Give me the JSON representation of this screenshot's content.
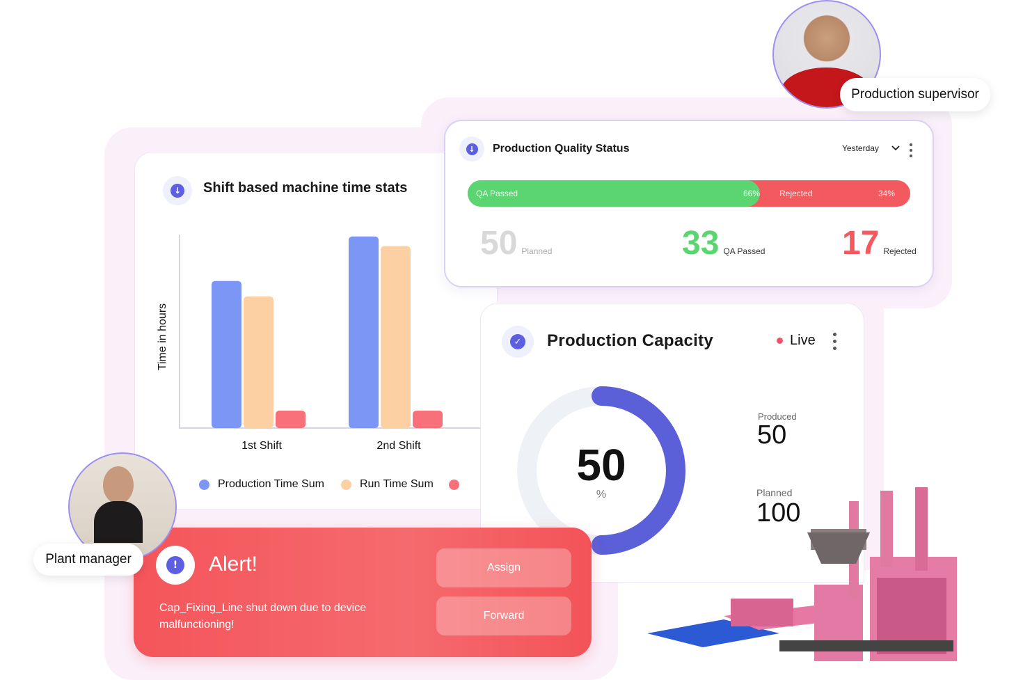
{
  "supervisor": {
    "label": "Production supervisor"
  },
  "manager": {
    "label": "Plant manager"
  },
  "shift_card": {
    "title": "Shift based machine time stats",
    "ylabel": "Time in hours",
    "legend": [
      "Production Time Sum",
      "Run Time Sum"
    ]
  },
  "chart_data": {
    "type": "bar",
    "categories": [
      "1st Shift",
      "2nd Shift"
    ],
    "ylabel": "Time in hours",
    "ylim": [
      0,
      10
    ],
    "series": [
      {
        "name": "Production Time Sum",
        "values": [
          7.6,
          9.9
        ],
        "color": "#7b96f5"
      },
      {
        "name": "Run Time Sum",
        "values": [
          6.8,
          9.4
        ],
        "color": "#fdd0a3"
      },
      {
        "values": [
          0.9,
          0.9
        ],
        "color": "#f7707a"
      }
    ]
  },
  "quality_card": {
    "title": "Production Quality Status",
    "period": "Yesterday",
    "bar": {
      "passed_label": "QA Passed",
      "passed_pct": "66%",
      "passed_fraction": 0.66,
      "rejected_label": "Rejected",
      "rejected_pct": "34%"
    },
    "planned_value": "50",
    "planned_label": "Planned",
    "passed_value": "33",
    "passed_label": "QA Passed",
    "rejected_value": "17",
    "rejected_label": "Rejected"
  },
  "capacity_card": {
    "title": "Production Capacity",
    "status": "Live",
    "gauge_value": "50",
    "gauge_unit": "%",
    "gauge_fraction": 0.5,
    "produced_label": "Produced",
    "produced_value": "50",
    "planned_label": "Planned",
    "planned_value": "100"
  },
  "alert": {
    "title": "Alert!",
    "message": "Cap_Fixing_Line shut down due to device malfunctioning!",
    "assign_label": "Assign",
    "forward_label": "Forward"
  },
  "colors": {
    "accent": "#5b5fe0",
    "green": "#5bd572",
    "red": "#f25a5f",
    "live": "#f0546a"
  }
}
